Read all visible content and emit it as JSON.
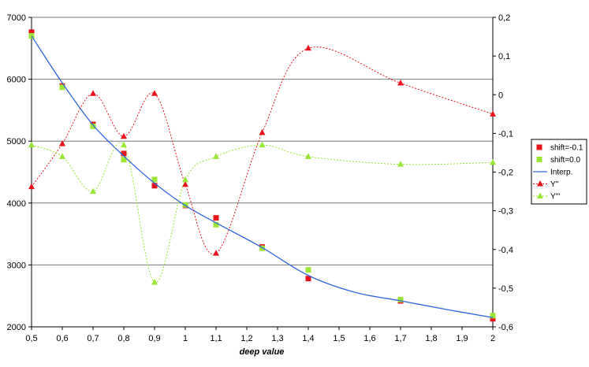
{
  "chart_data": {
    "type": "line",
    "xlabel": "deep value",
    "x_ticks": [
      "0,5",
      "0,6",
      "0,7",
      "0,8",
      "0,9",
      "1",
      "1,1",
      "1,2",
      "1,3",
      "1,4",
      "1,5",
      "1,6",
      "1,7",
      "1,8",
      "1,9",
      "2"
    ],
    "x_range": [
      0.5,
      2.0
    ],
    "y_left": {
      "range": [
        2000,
        7000
      ],
      "ticks": [
        "2000",
        "3000",
        "4000",
        "5000",
        "6000",
        "7000"
      ],
      "grid": true
    },
    "y_right": {
      "range": [
        -0.6,
        0.2
      ],
      "ticks": [
        "-0,6",
        "-0,5",
        "-0,4",
        "-0,3",
        "-0,2",
        "-0,1",
        "0",
        "0,1",
        "0,2"
      ]
    },
    "legend_position": "right",
    "series": [
      {
        "name": "shift=-0.1",
        "axis": "left",
        "style": "markers",
        "marker": "square",
        "color": "#e8141c",
        "x": [
          0.5,
          0.6,
          0.7,
          0.8,
          0.9,
          1.0,
          1.1,
          1.25,
          1.4,
          1.7,
          2.0
        ],
        "y": [
          6760,
          5890,
          5270,
          4800,
          4280,
          3960,
          3760,
          3290,
          2780,
          2420,
          2130
        ]
      },
      {
        "name": "shift=0.0",
        "axis": "left",
        "style": "markers",
        "marker": "square",
        "color": "#99e634",
        "x": [
          0.5,
          0.6,
          0.7,
          0.8,
          0.9,
          1.0,
          1.1,
          1.25,
          1.4,
          1.7,
          2.0
        ],
        "y": [
          6700,
          5870,
          5240,
          4700,
          4380,
          3970,
          3650,
          3270,
          2920,
          2440,
          2180
        ]
      },
      {
        "name": "Interp.",
        "axis": "left",
        "style": "smooth-line",
        "color": "#3366dd",
        "x": [
          0.5,
          0.6,
          0.7,
          0.8,
          0.9,
          1.0,
          1.1,
          1.25,
          1.4,
          1.55,
          1.7,
          1.85,
          2.0
        ],
        "y": [
          6700,
          5940,
          5260,
          4760,
          4320,
          3960,
          3680,
          3280,
          2830,
          2560,
          2420,
          2280,
          2150
        ]
      },
      {
        "name": "Y''",
        "axis": "right",
        "style": "dotted-line-markers",
        "marker": "triangle",
        "color": "#e8141c",
        "x": [
          0.5,
          0.6,
          0.7,
          0.8,
          0.9,
          1.0,
          1.1,
          1.25,
          1.4,
          1.7,
          2.0
        ],
        "y": [
          -0.238,
          -0.127,
          0.003,
          -0.108,
          0.003,
          -0.232,
          -0.41,
          -0.098,
          0.12,
          0.03,
          -0.05
        ]
      },
      {
        "name": "Y'''",
        "axis": "right",
        "style": "dotted-line-markers",
        "marker": "triangle",
        "color": "#99e634",
        "x": [
          0.5,
          0.6,
          0.7,
          0.8,
          0.9,
          1.0,
          1.1,
          1.25,
          1.4,
          1.7,
          2.0
        ],
        "y": [
          -0.13,
          -0.16,
          -0.25,
          -0.13,
          -0.485,
          -0.22,
          -0.16,
          -0.13,
          -0.16,
          -0.18,
          -0.175
        ]
      }
    ]
  }
}
